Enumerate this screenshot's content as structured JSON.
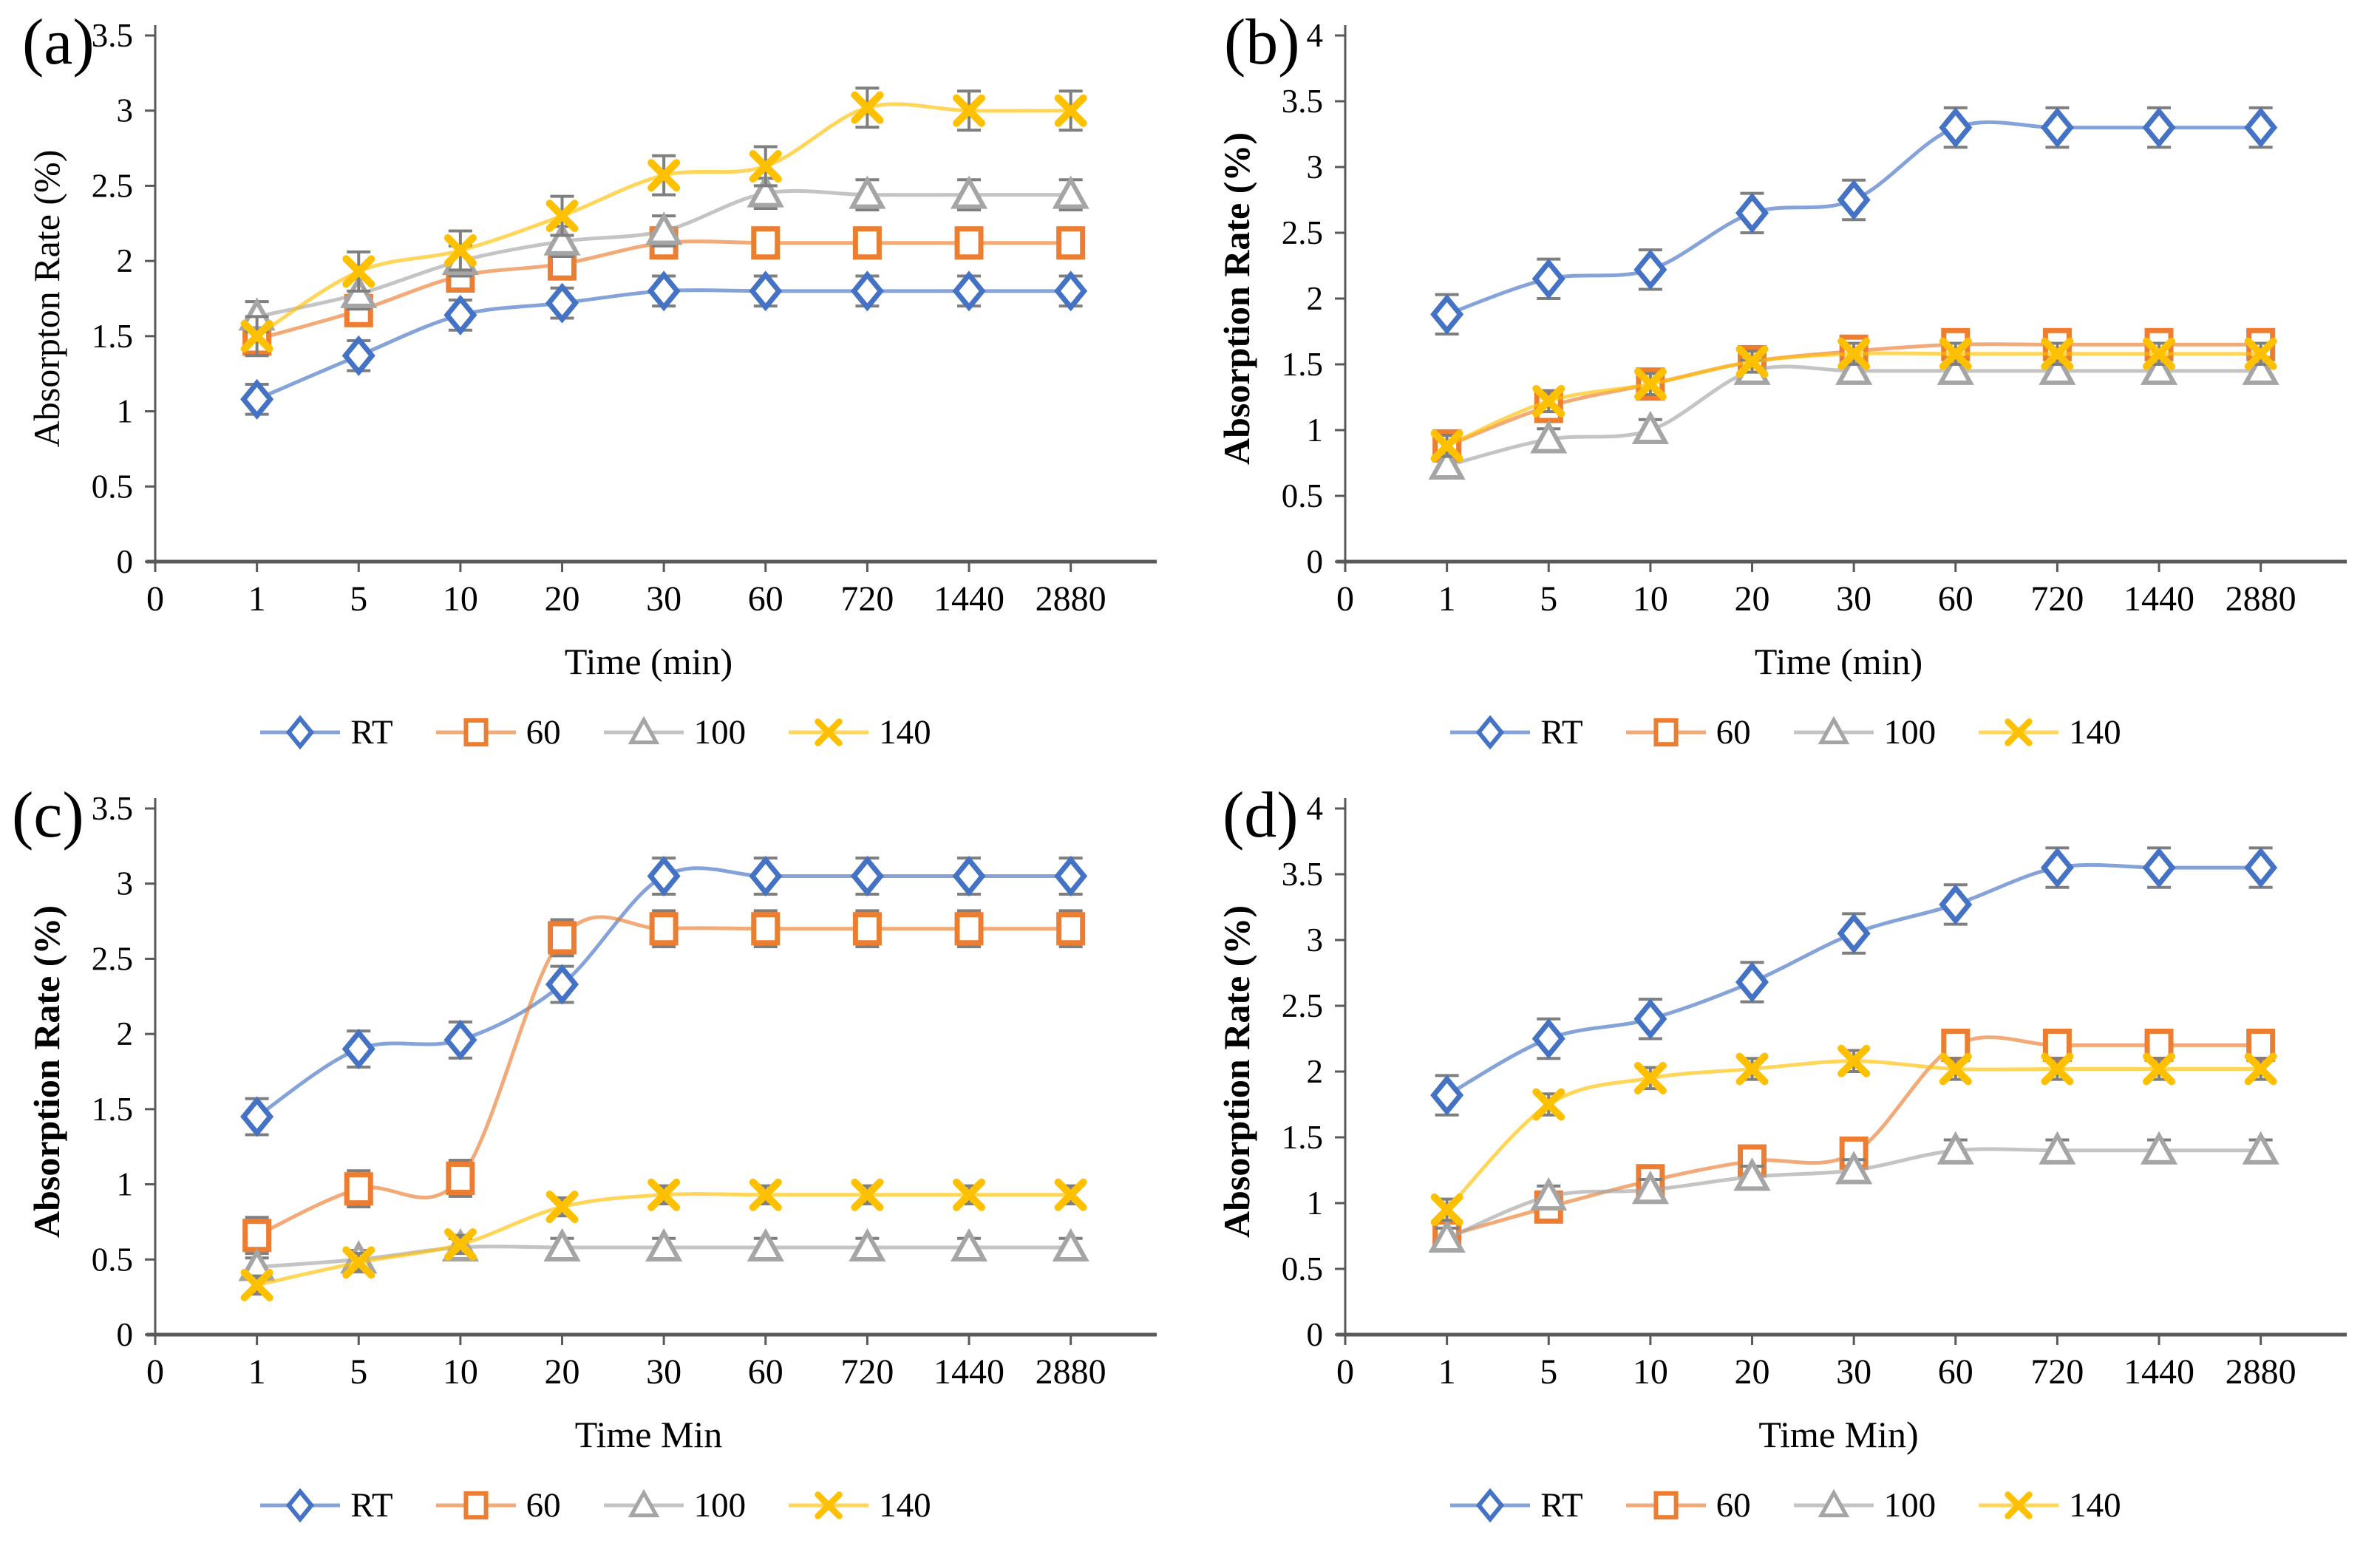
{
  "chart_data": [
    {
      "panel": "(a)",
      "type": "line",
      "title": "",
      "xlabel": "Time (min)",
      "ylabel": "Absorpton Rate (%)",
      "categories": [
        "0",
        "1",
        "5",
        "10",
        "20",
        "30",
        "60",
        "720",
        "1440",
        "2880"
      ],
      "yticks": [
        "0",
        "0.5",
        "1",
        "1.5",
        "2",
        "2.5",
        "3",
        "3.5"
      ],
      "ylim": [
        0,
        3.5
      ],
      "grid": false,
      "legend_position": "bottom",
      "series": [
        {
          "name": "RT",
          "marker": "diamond",
          "color": "#4472C4",
          "error": 0.1,
          "values": [
            null,
            1.08,
            1.37,
            1.64,
            1.72,
            1.8,
            1.8,
            1.8,
            1.8,
            1.8
          ]
        },
        {
          "name": "60",
          "marker": "square",
          "color": "#ED7D31",
          "error": 0.1,
          "values": [
            null,
            1.48,
            1.67,
            1.9,
            1.98,
            2.12,
            2.12,
            2.12,
            2.12,
            2.12
          ]
        },
        {
          "name": "100",
          "marker": "triangle",
          "color": "#A5A5A5",
          "error": 0.1,
          "values": [
            null,
            1.63,
            1.78,
            2.0,
            2.13,
            2.2,
            2.45,
            2.44,
            2.44,
            2.44
          ]
        },
        {
          "name": "140",
          "marker": "x",
          "color": "#FFC000",
          "error": 0.13,
          "values": [
            null,
            1.5,
            1.93,
            2.07,
            2.3,
            2.57,
            2.63,
            3.02,
            3.0,
            3.0
          ]
        }
      ]
    },
    {
      "panel": "(b)",
      "type": "line",
      "title": "",
      "xlabel": "Time (min)",
      "ylabel": "Absorption Rate (%)",
      "categories": [
        "0",
        "1",
        "5",
        "10",
        "20",
        "30",
        "60",
        "720",
        "1440",
        "2880"
      ],
      "yticks": [
        "0",
        "0.5",
        "1",
        "1.5",
        "2",
        "2.5",
        "3",
        "3.5",
        "4"
      ],
      "ylim": [
        0,
        4
      ],
      "grid": false,
      "legend_position": "bottom",
      "series": [
        {
          "name": "RT",
          "marker": "diamond",
          "color": "#4472C4",
          "error": 0.15,
          "values": [
            null,
            1.88,
            2.15,
            2.22,
            2.65,
            2.75,
            3.3,
            3.3,
            3.3,
            3.3
          ]
        },
        {
          "name": "60",
          "marker": "square",
          "color": "#ED7D31",
          "error": 0.08,
          "values": [
            null,
            0.88,
            1.18,
            1.35,
            1.52,
            1.6,
            1.65,
            1.65,
            1.65,
            1.65
          ]
        },
        {
          "name": "100",
          "marker": "triangle",
          "color": "#A5A5A5",
          "error": 0.08,
          "values": [
            null,
            0.73,
            0.93,
            1.0,
            1.45,
            1.45,
            1.45,
            1.45,
            1.45,
            1.45
          ]
        },
        {
          "name": "140",
          "marker": "x",
          "color": "#FFC000",
          "error": 0.08,
          "values": [
            null,
            0.88,
            1.22,
            1.35,
            1.52,
            1.58,
            1.58,
            1.58,
            1.58,
            1.58
          ]
        }
      ]
    },
    {
      "panel": "(c)",
      "type": "line",
      "title": "",
      "xlabel": "Time Min",
      "ylabel": "Absorption Rate (%)",
      "categories": [
        "0",
        "1",
        "5",
        "10",
        "20",
        "30",
        "60",
        "720",
        "1440",
        "2880"
      ],
      "yticks": [
        "0",
        "0.5",
        "1",
        "1.5",
        "2",
        "2.5",
        "3",
        "3.5"
      ],
      "ylim": [
        0,
        3.5
      ],
      "grid": false,
      "legend_position": "bottom",
      "series": [
        {
          "name": "RT",
          "marker": "diamond",
          "color": "#4472C4",
          "error": 0.12,
          "values": [
            null,
            1.45,
            1.9,
            1.96,
            2.33,
            3.05,
            3.05,
            3.05,
            3.05,
            3.05
          ]
        },
        {
          "name": "60",
          "marker": "square",
          "color": "#ED7D31",
          "error": 0.12,
          "values": [
            null,
            0.66,
            0.97,
            1.04,
            2.64,
            2.7,
            2.7,
            2.7,
            2.7,
            2.7
          ]
        },
        {
          "name": "100",
          "marker": "triangle",
          "color": "#A5A5A5",
          "error": 0.06,
          "values": [
            null,
            0.45,
            0.5,
            0.58,
            0.58,
            0.58,
            0.58,
            0.58,
            0.58,
            0.58
          ]
        },
        {
          "name": "140",
          "marker": "x",
          "color": "#FFC000",
          "error": 0.06,
          "values": [
            null,
            0.33,
            0.48,
            0.6,
            0.85,
            0.93,
            0.93,
            0.93,
            0.93,
            0.93
          ]
        }
      ]
    },
    {
      "panel": "(d)",
      "type": "line",
      "title": "",
      "xlabel": "Time Min)",
      "ylabel": "Absorption Rate (%)",
      "categories": [
        "0",
        "1",
        "5",
        "10",
        "20",
        "30",
        "60",
        "720",
        "1440",
        "2880"
      ],
      "yticks": [
        "0",
        "0.5",
        "1",
        "1.5",
        "2",
        "2.5",
        "3",
        "3.5",
        "4"
      ],
      "ylim": [
        0,
        4
      ],
      "grid": false,
      "legend_position": "bottom",
      "series": [
        {
          "name": "RT",
          "marker": "diamond",
          "color": "#4472C4",
          "error": 0.15,
          "values": [
            null,
            1.82,
            2.25,
            2.4,
            2.68,
            3.05,
            3.27,
            3.55,
            3.55,
            3.55
          ]
        },
        {
          "name": "60",
          "marker": "square",
          "color": "#ED7D31",
          "error": 0.1,
          "values": [
            null,
            0.75,
            0.97,
            1.17,
            1.32,
            1.38,
            2.2,
            2.2,
            2.2,
            2.2
          ]
        },
        {
          "name": "100",
          "marker": "triangle",
          "color": "#A5A5A5",
          "error": 0.08,
          "values": [
            null,
            0.73,
            1.05,
            1.1,
            1.2,
            1.25,
            1.4,
            1.4,
            1.4,
            1.4
          ]
        },
        {
          "name": "140",
          "marker": "x",
          "color": "#FFC000",
          "error": 0.08,
          "values": [
            null,
            0.95,
            1.75,
            1.95,
            2.02,
            2.08,
            2.02,
            2.02,
            2.02,
            2.02
          ]
        }
      ]
    }
  ],
  "colors": {
    "series_rt": "#4472C4",
    "series_60": "#ED7D31",
    "series_100": "#A5A5A5",
    "series_140": "#FFC000",
    "error_bar": "#7F7F7F",
    "axis": "#595959",
    "text": "#000000",
    "background": "#FFFFFF"
  }
}
